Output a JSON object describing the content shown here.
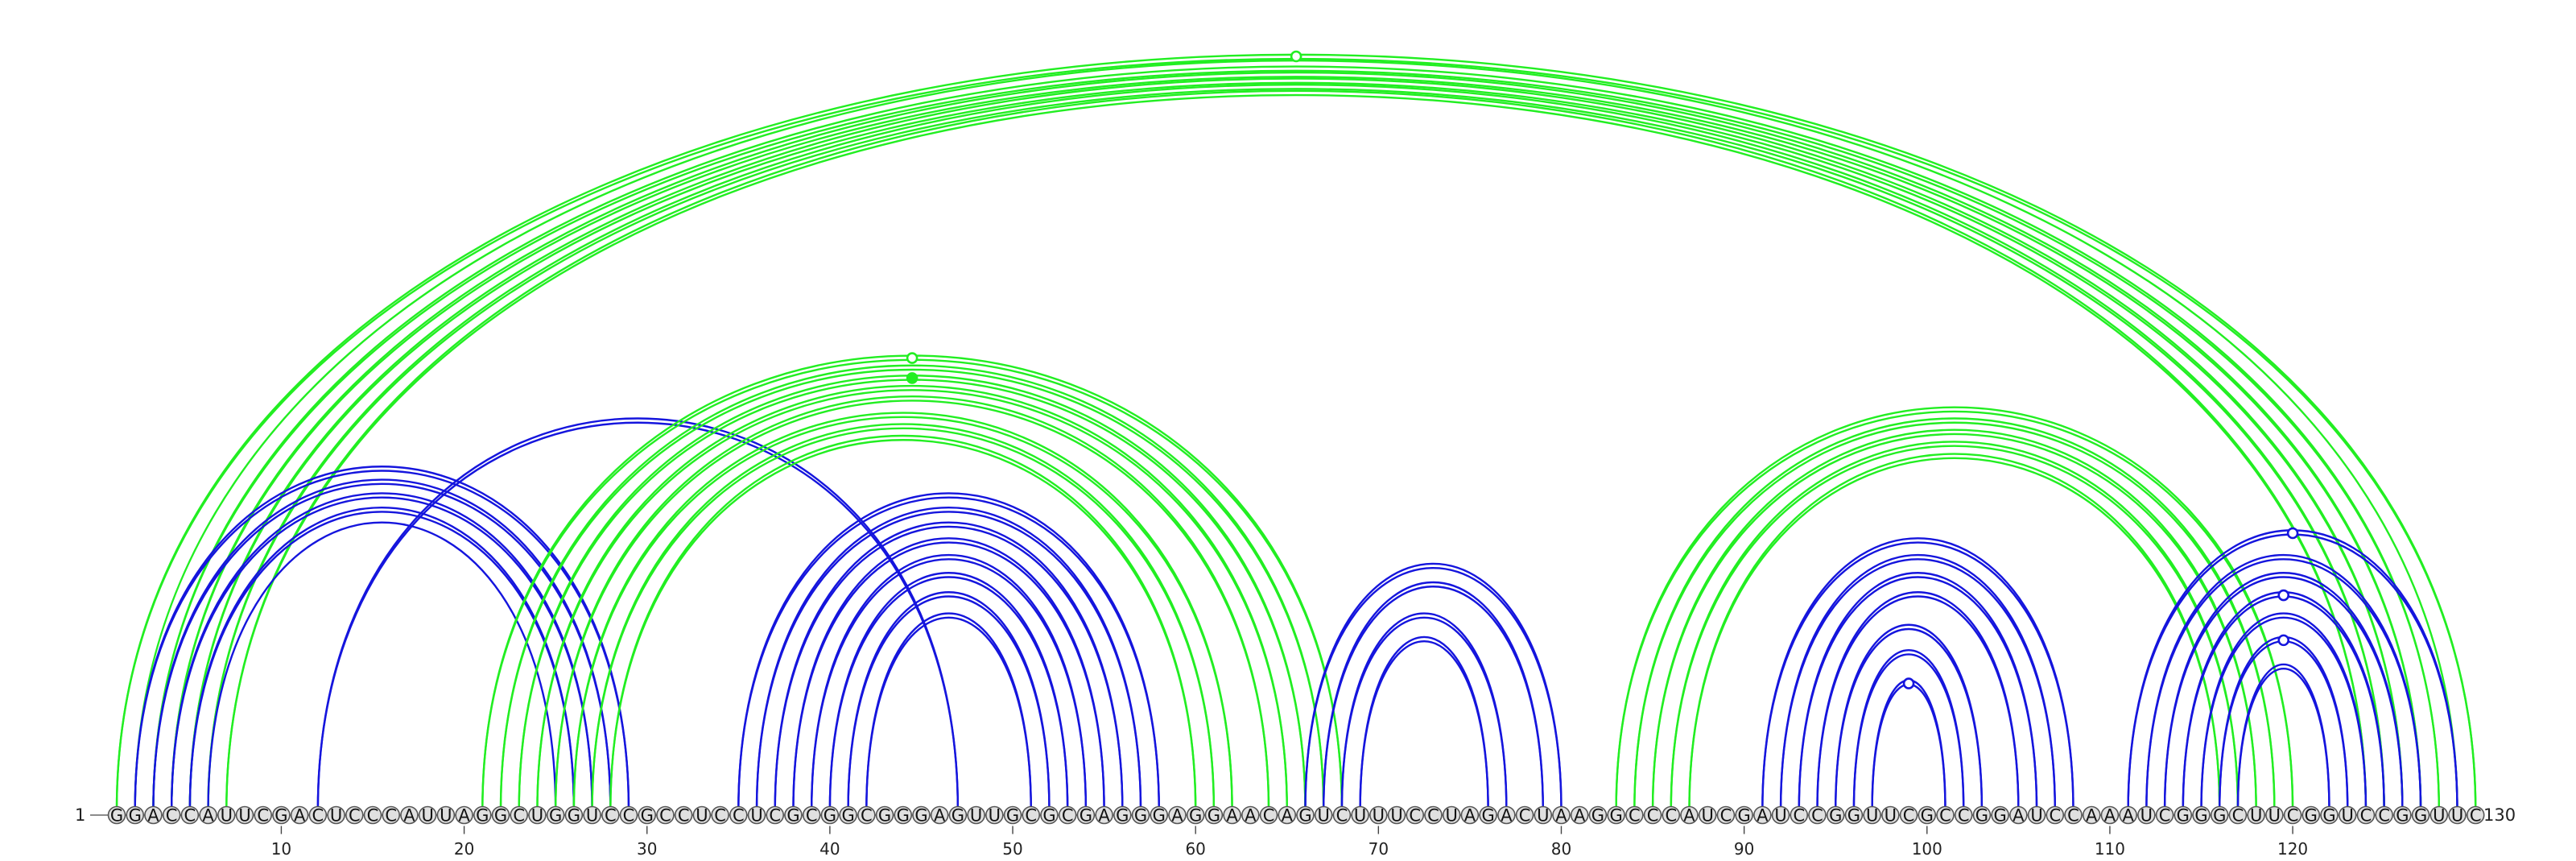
{
  "sequence": "GGACCAUUCGACUCCCAUUAGGCUGGUCCGCCUCCUCGCGGCGGGAGUUGCGCGAGGGAGGAACAGUCUUUCCUAGACUAAGGCCCAUCGAUCCGGUUCGCCGGAUCCAAAUCGGGCUUCGGUCCGGUUC",
  "start_label": "1",
  "end_label": "130",
  "tick_numbers": [
    10,
    20,
    30,
    40,
    50,
    60,
    70,
    80,
    90,
    100,
    110,
    120
  ],
  "colors": {
    "green": "#22ee22",
    "blue": "#1515dd"
  },
  "arc_groups": [
    {
      "color": "green",
      "i": 1,
      "j": 130,
      "n": 2
    },
    {
      "color": "green",
      "i": 2,
      "j": 129,
      "n": 1
    },
    {
      "color": "green",
      "i": 3,
      "j": 128,
      "n": 2
    },
    {
      "color": "green",
      "i": 4,
      "j": 127,
      "n": 2
    },
    {
      "color": "green",
      "i": 5,
      "j": 126,
      "n": 2
    },
    {
      "color": "green",
      "i": 6,
      "j": 125,
      "n": 2
    },
    {
      "color": "green",
      "i": 7,
      "j": 124,
      "n": 2
    },
    {
      "color": "blue",
      "i": 2,
      "j": 29,
      "n": 2
    },
    {
      "color": "blue",
      "i": 3,
      "j": 28,
      "n": 2
    },
    {
      "color": "blue",
      "i": 4,
      "j": 27,
      "n": 2
    },
    {
      "color": "blue",
      "i": 5,
      "j": 26,
      "n": 2
    },
    {
      "color": "blue",
      "i": 6,
      "j": 25,
      "n": 1
    },
    {
      "color": "blue",
      "i": 12,
      "j": 47,
      "n": 2
    },
    {
      "color": "green",
      "i": 21,
      "j": 68,
      "n": 2
    },
    {
      "color": "green",
      "i": 22,
      "j": 67,
      "n": 2
    },
    {
      "color": "green",
      "i": 23,
      "j": 66,
      "n": 2
    },
    {
      "color": "green",
      "i": 24,
      "j": 65,
      "n": 2
    },
    {
      "color": "green",
      "i": 25,
      "j": 64,
      "n": 2
    },
    {
      "color": "green",
      "i": 26,
      "j": 62,
      "n": 2
    },
    {
      "color": "green",
      "i": 27,
      "j": 61,
      "n": 2
    },
    {
      "color": "green",
      "i": 28,
      "j": 60,
      "n": 2
    },
    {
      "color": "blue",
      "i": 35,
      "j": 58,
      "n": 2
    },
    {
      "color": "blue",
      "i": 36,
      "j": 57,
      "n": 2
    },
    {
      "color": "blue",
      "i": 37,
      "j": 56,
      "n": 2
    },
    {
      "color": "blue",
      "i": 38,
      "j": 55,
      "n": 2
    },
    {
      "color": "blue",
      "i": 39,
      "j": 54,
      "n": 2
    },
    {
      "color": "blue",
      "i": 40,
      "j": 53,
      "n": 2
    },
    {
      "color": "blue",
      "i": 41,
      "j": 52,
      "n": 2
    },
    {
      "color": "blue",
      "i": 42,
      "j": 51,
      "n": 2
    },
    {
      "color": "blue",
      "i": 66,
      "j": 80,
      "n": 2
    },
    {
      "color": "blue",
      "i": 67,
      "j": 79,
      "n": 2
    },
    {
      "color": "blue",
      "i": 68,
      "j": 77,
      "n": 2
    },
    {
      "color": "blue",
      "i": 69,
      "j": 76,
      "n": 2
    },
    {
      "color": "green",
      "i": 83,
      "j": 120,
      "n": 2
    },
    {
      "color": "green",
      "i": 84,
      "j": 119,
      "n": 2
    },
    {
      "color": "green",
      "i": 85,
      "j": 118,
      "n": 2
    },
    {
      "color": "green",
      "i": 86,
      "j": 117,
      "n": 2
    },
    {
      "color": "green",
      "i": 87,
      "j": 116,
      "n": 2
    },
    {
      "color": "blue",
      "i": 91,
      "j": 108,
      "n": 2
    },
    {
      "color": "blue",
      "i": 92,
      "j": 107,
      "n": 2
    },
    {
      "color": "blue",
      "i": 93,
      "j": 106,
      "n": 2
    },
    {
      "color": "blue",
      "i": 94,
      "j": 105,
      "n": 2
    },
    {
      "color": "blue",
      "i": 95,
      "j": 103,
      "n": 2
    },
    {
      "color": "blue",
      "i": 96,
      "j": 102,
      "n": 2
    },
    {
      "color": "blue",
      "i": 97,
      "j": 101,
      "n": 2
    },
    {
      "color": "blue",
      "i": 111,
      "j": 129,
      "n": 2
    },
    {
      "color": "blue",
      "i": 112,
      "j": 127,
      "n": 2
    },
    {
      "color": "blue",
      "i": 113,
      "j": 126,
      "n": 2
    },
    {
      "color": "blue",
      "i": 114,
      "j": 125,
      "n": 2
    },
    {
      "color": "blue",
      "i": 115,
      "j": 124,
      "n": 2
    },
    {
      "color": "blue",
      "i": 116,
      "j": 123,
      "n": 2
    },
    {
      "color": "blue",
      "i": 117,
      "j": 122,
      "n": 2
    }
  ],
  "markers": [
    {
      "color": "green",
      "i": 1,
      "j": 130,
      "filled": false
    },
    {
      "color": "green",
      "i": 21,
      "j": 68,
      "filled": false
    },
    {
      "color": "green",
      "i": 23,
      "j": 66,
      "filled": true
    },
    {
      "color": "blue",
      "i": 97,
      "j": 101,
      "filled": false
    },
    {
      "color": "blue",
      "i": 111,
      "j": 129,
      "filled": false
    },
    {
      "color": "blue",
      "i": 114,
      "j": 125,
      "filled": false
    },
    {
      "color": "blue",
      "i": 116,
      "j": 123,
      "filled": false
    }
  ]
}
